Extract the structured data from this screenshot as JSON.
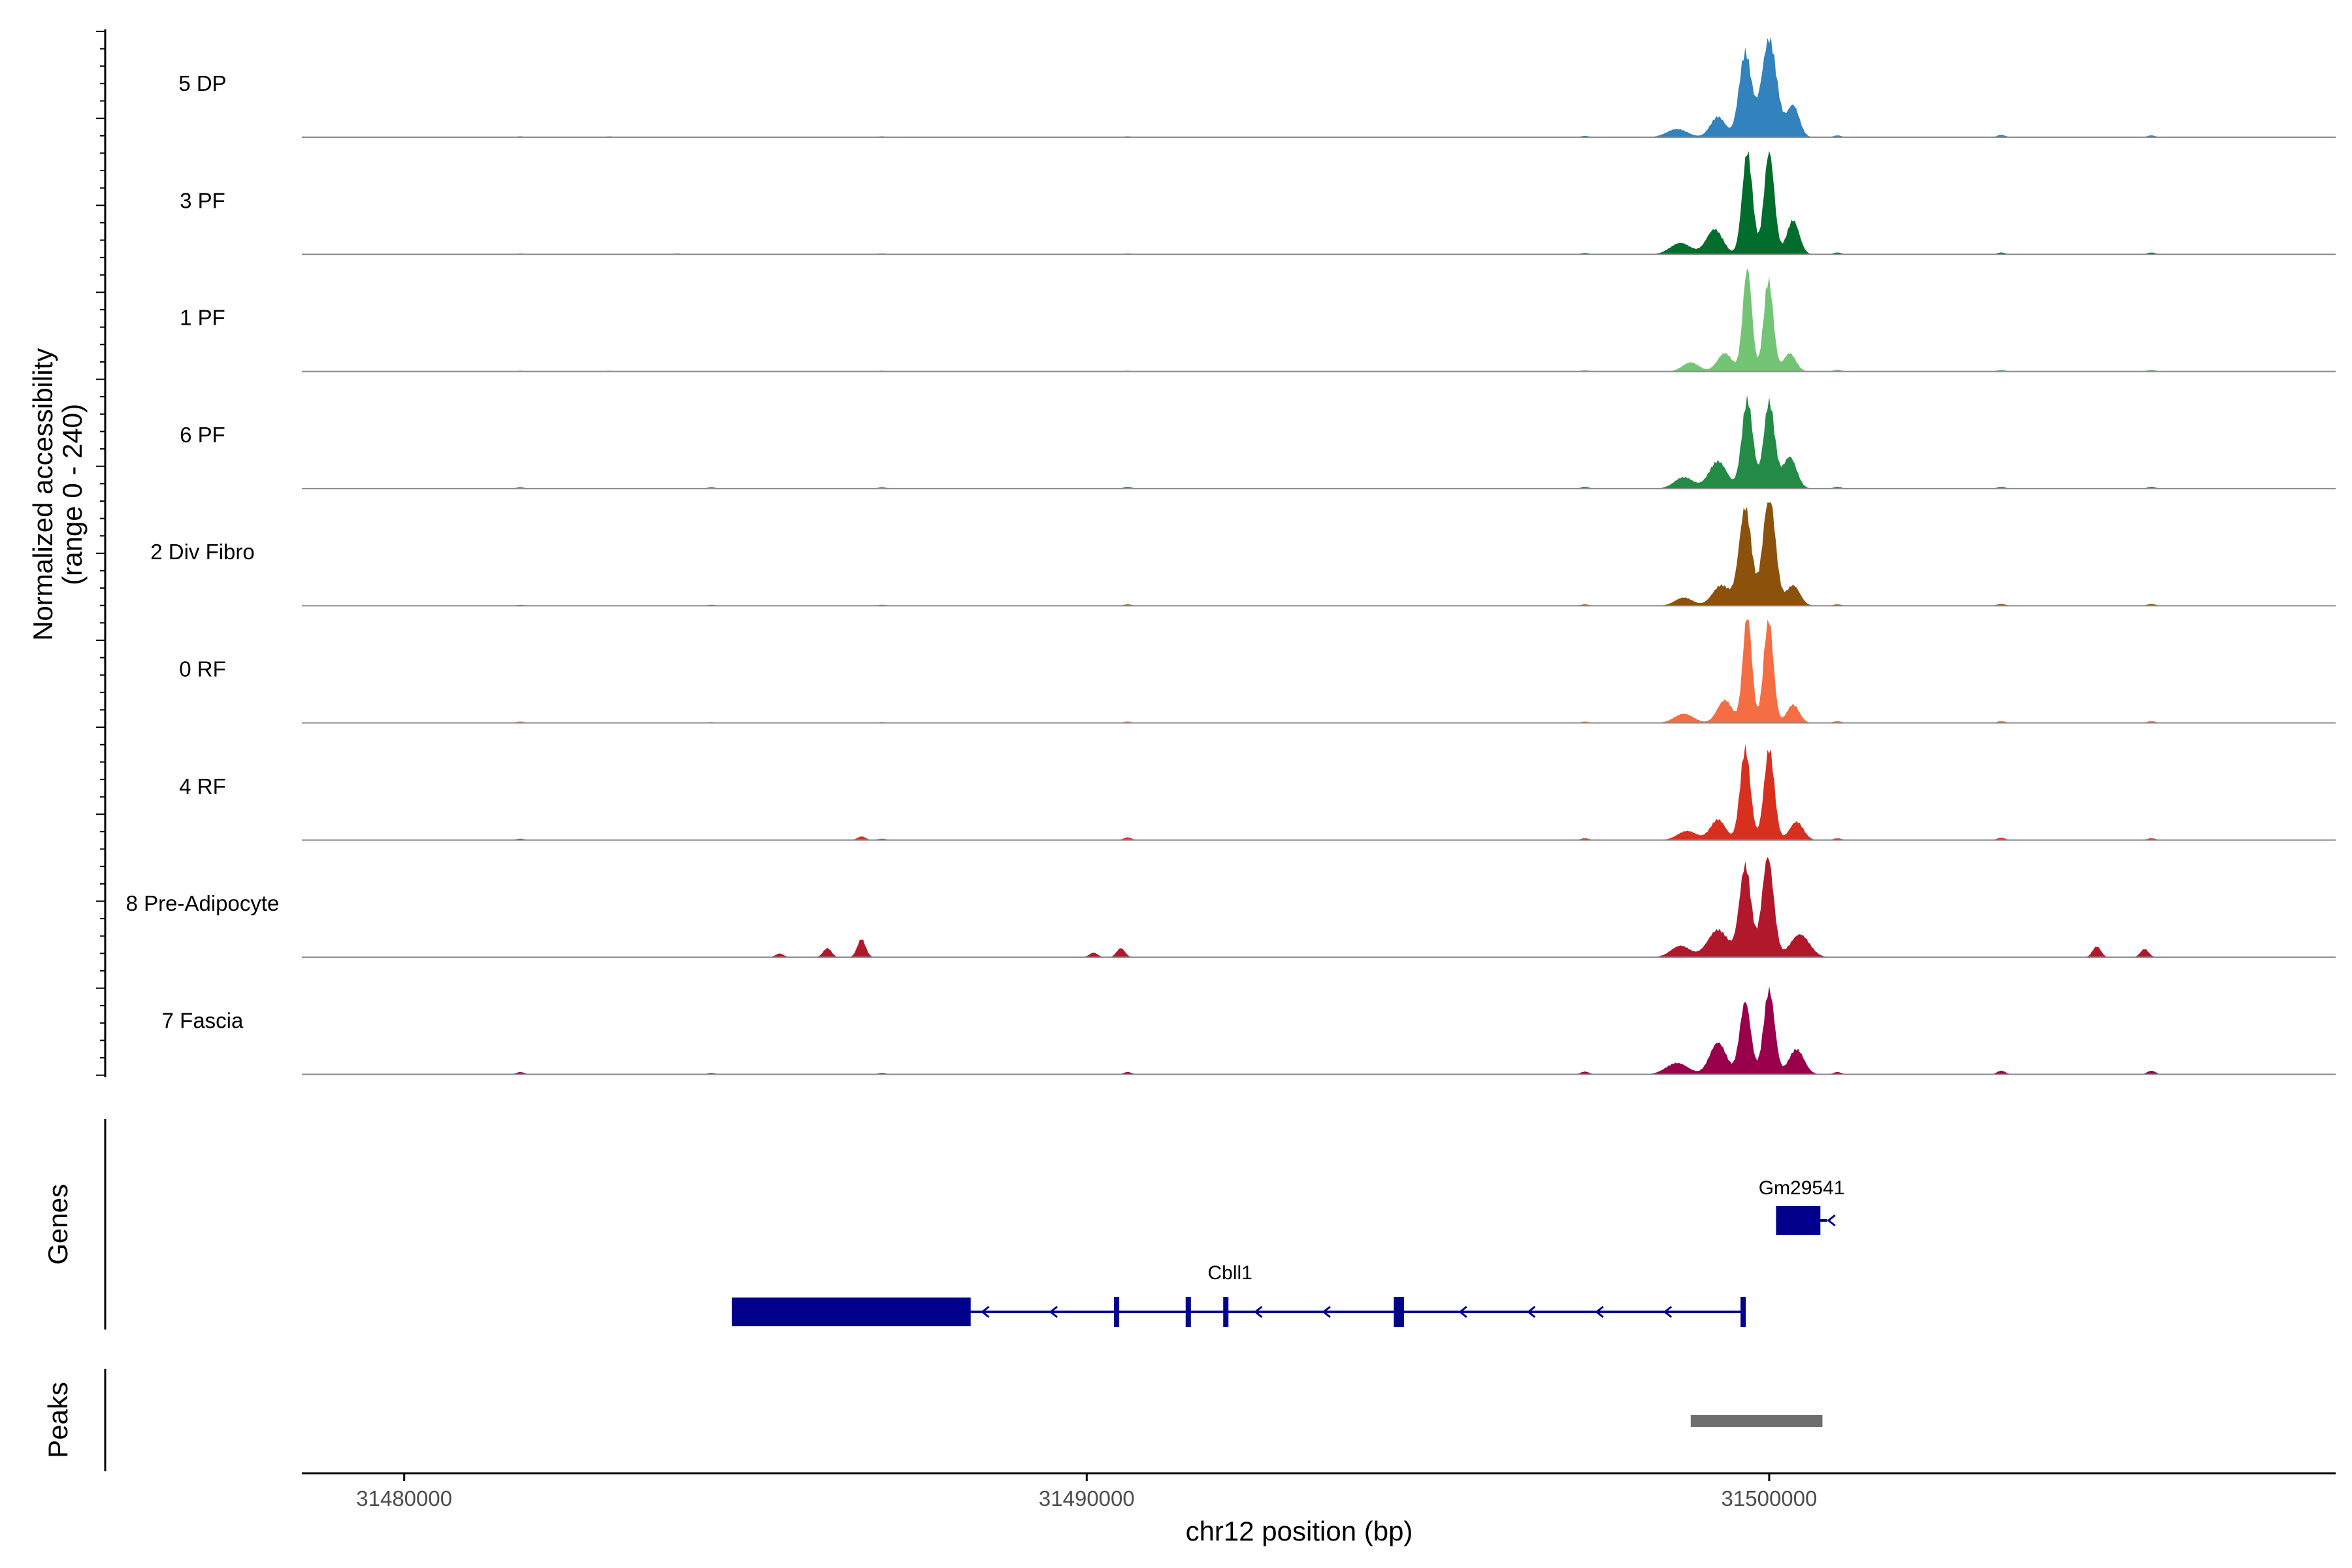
{
  "chart_data": {
    "type": "area",
    "title": "",
    "ylabel": "Normalized accessibility",
    "ylabel_range": "(range 0 - 240)",
    "xlabel": "chr12 position (bp)",
    "xlim": [
      31478500,
      31508300
    ],
    "ylim": [
      0,
      240
    ],
    "x_ticks": [
      31480000,
      31490000,
      31500000
    ],
    "x_tick_labels": [
      "31480000",
      "31490000",
      "31500000"
    ],
    "tracks": [
      {
        "name": "5 DP",
        "color": "#3182BD",
        "peaks": [
          [
            31499250,
            45,
            110
          ],
          [
            31499650,
            185,
            90
          ],
          [
            31500000,
            215,
            110
          ],
          [
            31500350,
            70,
            90
          ],
          [
            31498650,
            18,
            150
          ]
        ],
        "noise": [
          [
            31481700,
            2
          ],
          [
            31483000,
            2
          ],
          [
            31487000,
            2
          ],
          [
            31490600,
            2
          ],
          [
            31497300,
            3
          ],
          [
            31501000,
            4
          ],
          [
            31503400,
            5
          ],
          [
            31505600,
            4
          ]
        ]
      },
      {
        "name": "3 PF",
        "color": "#006D2C",
        "peaks": [
          [
            31499200,
            55,
            120
          ],
          [
            31499680,
            225,
            75
          ],
          [
            31500000,
            225,
            75
          ],
          [
            31500350,
            75,
            90
          ],
          [
            31498700,
            25,
            150
          ]
        ],
        "noise": [
          [
            31481700,
            2
          ],
          [
            31484000,
            2
          ],
          [
            31487000,
            2
          ],
          [
            31490600,
            2
          ],
          [
            31497300,
            3
          ],
          [
            31501000,
            4
          ],
          [
            31503400,
            4
          ],
          [
            31505600,
            4
          ]
        ]
      },
      {
        "name": "1 PF",
        "color": "#74C476",
        "peaks": [
          [
            31499350,
            40,
            110
          ],
          [
            31499680,
            230,
            65
          ],
          [
            31499990,
            200,
            70
          ],
          [
            31500300,
            40,
            90
          ],
          [
            31498850,
            20,
            120
          ]
        ],
        "noise": [
          [
            31481700,
            2
          ],
          [
            31483000,
            2
          ],
          [
            31487000,
            2
          ],
          [
            31490600,
            2
          ],
          [
            31497300,
            3
          ],
          [
            31501000,
            4
          ],
          [
            31503400,
            4
          ],
          [
            31505600,
            4
          ]
        ]
      },
      {
        "name": "6 PF",
        "color": "#238B45",
        "peaks": [
          [
            31499250,
            60,
            130
          ],
          [
            31499680,
            195,
            80
          ],
          [
            31500000,
            190,
            80
          ],
          [
            31500300,
            70,
            100
          ],
          [
            31498750,
            25,
            140
          ]
        ],
        "noise": [
          [
            31481700,
            3
          ],
          [
            31484500,
            3
          ],
          [
            31487000,
            3
          ],
          [
            31490600,
            4
          ],
          [
            31497300,
            4
          ],
          [
            31501000,
            4
          ],
          [
            31503400,
            4
          ],
          [
            31505600,
            4
          ]
        ]
      },
      {
        "name": "2 Div Fibro",
        "color": "#8C510A",
        "peaks": [
          [
            31499300,
            45,
            130
          ],
          [
            31499650,
            215,
            90
          ],
          [
            31500000,
            245,
            90
          ],
          [
            31500350,
            45,
            100
          ],
          [
            31498750,
            18,
            130
          ]
        ],
        "noise": [
          [
            31481700,
            2
          ],
          [
            31484500,
            2
          ],
          [
            31487000,
            2
          ],
          [
            31490600,
            3
          ],
          [
            31497300,
            3
          ],
          [
            31501000,
            3
          ],
          [
            31503400,
            4
          ],
          [
            31505600,
            4
          ]
        ]
      },
      {
        "name": "0 RF",
        "color": "#F46D43",
        "peaks": [
          [
            31499350,
            50,
            110
          ],
          [
            31499680,
            240,
            65
          ],
          [
            31499990,
            230,
            70
          ],
          [
            31500350,
            40,
            90
          ],
          [
            31498750,
            20,
            140
          ]
        ],
        "noise": [
          [
            31481700,
            3
          ],
          [
            31484500,
            2
          ],
          [
            31487000,
            2
          ],
          [
            31490600,
            3
          ],
          [
            31497300,
            3
          ],
          [
            31501000,
            4
          ],
          [
            31503400,
            4
          ],
          [
            31505600,
            4
          ]
        ]
      },
      {
        "name": "4 RF",
        "color": "#D7301F",
        "peaks": [
          [
            31499250,
            45,
            110
          ],
          [
            31499650,
            200,
            75
          ],
          [
            31500000,
            200,
            75
          ],
          [
            31500400,
            40,
            100
          ],
          [
            31498800,
            20,
            140
          ]
        ],
        "noise": [
          [
            31481700,
            3
          ],
          [
            31486700,
            8
          ],
          [
            31487000,
            3
          ],
          [
            31490600,
            6
          ],
          [
            31497300,
            4
          ],
          [
            31501000,
            4
          ],
          [
            31503400,
            5
          ],
          [
            31505600,
            4
          ]
        ]
      },
      {
        "name": "8 Pre-Adipocyte",
        "color": "#B2182B",
        "peaks": [
          [
            31499250,
            60,
            150
          ],
          [
            31499650,
            200,
            85
          ],
          [
            31499980,
            220,
            85
          ],
          [
            31500450,
            50,
            140
          ],
          [
            31498700,
            25,
            140
          ]
        ],
        "noise": [
          [
            31485500,
            8
          ],
          [
            31486200,
            20
          ],
          [
            31486700,
            40
          ],
          [
            31490100,
            10
          ],
          [
            31490500,
            20
          ],
          [
            31504800,
            24
          ],
          [
            31505500,
            18
          ]
        ]
      },
      {
        "name": "7 Fascia",
        "color": "#99004C",
        "peaks": [
          [
            31499250,
            70,
            120
          ],
          [
            31499650,
            160,
            80
          ],
          [
            31500000,
            185,
            80
          ],
          [
            31500400,
            55,
            110
          ],
          [
            31498650,
            25,
            160
          ]
        ],
        "noise": [
          [
            31481700,
            5
          ],
          [
            31484500,
            3
          ],
          [
            31487000,
            3
          ],
          [
            31490600,
            5
          ],
          [
            31497300,
            6
          ],
          [
            31501000,
            5
          ],
          [
            31503400,
            8
          ],
          [
            31505600,
            8
          ]
        ]
      }
    ],
    "genes_track_label": "Genes",
    "genes": [
      {
        "name": "Gm29541",
        "strand": "-",
        "start": 31500100,
        "end": 31500850,
        "exons": [
          [
            31500100,
            31500750
          ]
        ]
      },
      {
        "name": "Cbll1",
        "strand": "-",
        "start": 31484800,
        "end": 31499650,
        "exons": [
          [
            31484800,
            31488300
          ],
          [
            31490400,
            31490460
          ],
          [
            31491450,
            31491510
          ],
          [
            31492000,
            31492060
          ],
          [
            31494500,
            31494650
          ],
          [
            31499580,
            31499650
          ]
        ]
      }
    ],
    "peaks_track_label": "Peaks",
    "peak_regions": [
      [
        31498850,
        31500780
      ]
    ]
  }
}
